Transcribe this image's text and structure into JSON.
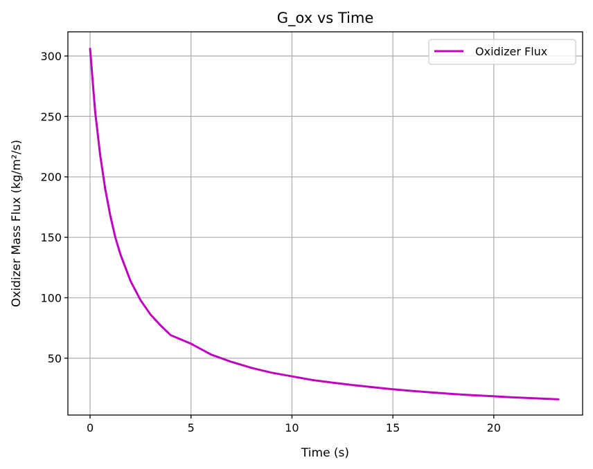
{
  "chart_data": {
    "type": "line",
    "title": "G_ox vs Time",
    "xlabel": "Time (s)",
    "ylabel": "Oxidizer Mass Flux (kg/m²/s)",
    "xlim": [
      -1.1,
      24.4
    ],
    "ylim": [
      3,
      320
    ],
    "xticks": [
      0,
      5,
      10,
      15,
      20
    ],
    "yticks": [
      50,
      100,
      150,
      200,
      250,
      300
    ],
    "grid": true,
    "legend": {
      "position": "top-right",
      "entries": [
        "Oxidizer Flux"
      ]
    },
    "series": [
      {
        "name": "Oxidizer Flux",
        "color": "#bf00bf",
        "x": [
          0,
          0.25,
          0.5,
          0.75,
          1.0,
          1.25,
          1.5,
          2.0,
          2.5,
          3.0,
          3.5,
          4.0,
          5.0,
          6.0,
          7.0,
          8.0,
          9.0,
          10.0,
          11.0,
          12.0,
          13.0,
          14.0,
          15.0,
          16.0,
          17.0,
          18.0,
          19.0,
          20.0,
          21.0,
          22.0,
          23.2
        ],
        "y": [
          306,
          254,
          218,
          190,
          168,
          150,
          136,
          114,
          98,
          86,
          77,
          69,
          62,
          53,
          47,
          42,
          38,
          35,
          32,
          29.8,
          27.8,
          26,
          24.3,
          22.9,
          21.6,
          20.4,
          19.4,
          18.5,
          17.6,
          16.9,
          16
        ]
      }
    ]
  }
}
